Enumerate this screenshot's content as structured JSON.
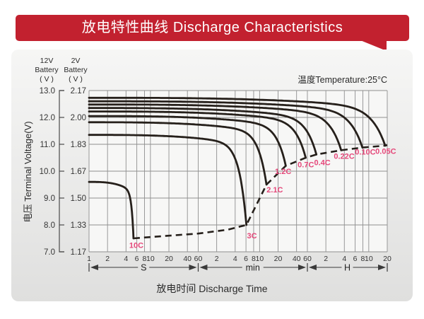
{
  "header": {
    "title": "放电特性曲线 Discharge Characteristics"
  },
  "colors": {
    "banner_red": "#c2212f",
    "curve": "#26201b",
    "grid": "#8f8f8f",
    "curve_label": "#e5487a",
    "axis_text": "#333333",
    "marker": "#3a3a3a"
  },
  "chart_data": {
    "type": "line",
    "title": "放电特性曲线 Discharge Characteristics",
    "temperature_label": "温度Temperature:25°C",
    "temperature_c": 25,
    "xlabel": "放电时间 Discharge Time",
    "ylabel": "电压 Terminal Voltage(V)",
    "x_scale": "log",
    "grid": true,
    "y_axis": {
      "header_12v": "12V\nBattery\n( V )",
      "header_2v": "2V\nBattery\n( V )",
      "range_12v": [
        7.0,
        13.0
      ],
      "range_2v": [
        1.17,
        2.17
      ],
      "ticks": [
        {
          "v12": "13.0",
          "v2": "2.17",
          "value": 13.0
        },
        {
          "v12": "12.0",
          "v2": "2.00",
          "value": 12.0
        },
        {
          "v12": "11.0",
          "v2": "1.83",
          "value": 11.0
        },
        {
          "v12": "10.0",
          "v2": "1.67",
          "value": 10.0
        },
        {
          "v12": "9.0",
          "v2": "1.50",
          "value": 9.0
        },
        {
          "v12": "8.0",
          "v2": "1.33",
          "value": 8.0
        },
        {
          "v12": "7.0",
          "v2": "1.17",
          "value": 7.0
        }
      ]
    },
    "x_axis": {
      "t_min_s": 1,
      "t_max_s": 72000,
      "sections": [
        {
          "label": "S",
          "unit_s": 1,
          "ticks": [
            1,
            2,
            4,
            6,
            8,
            10,
            20,
            40,
            60
          ]
        },
        {
          "label": "min",
          "unit_s": 60,
          "ticks": [
            2,
            4,
            6,
            8,
            10,
            20,
            40,
            60
          ]
        },
        {
          "label": "H",
          "unit_s": 3600,
          "ticks": [
            2,
            4,
            6,
            8,
            10,
            20
          ]
        }
      ]
    },
    "series": [
      {
        "label": "10C",
        "start_v": 9.6,
        "end_t_s": 5.3,
        "end_v": 7.5,
        "label_t_s": 5.9,
        "label_v": 7.25
      },
      {
        "label": "3C",
        "start_v": 11.35,
        "end_t_s": 366,
        "end_v": 8.0,
        "label_t_s": 450,
        "label_v": 7.6
      },
      {
        "label": "2.1C",
        "start_v": 11.82,
        "end_t_s": 776,
        "end_v": 9.5,
        "label_t_s": 1060,
        "label_v": 9.32
      },
      {
        "label": "1.2C",
        "start_v": 12.05,
        "end_t_s": 1600,
        "end_v": 10.2,
        "label_t_s": 1450,
        "label_v": 10.0
      },
      {
        "label": "0.7C",
        "start_v": 12.22,
        "end_t_s": 3380,
        "end_v": 10.5,
        "label_t_s": 3400,
        "label_v": 10.25
      },
      {
        "label": "0.4C",
        "start_v": 12.35,
        "end_t_s": 5040,
        "end_v": 10.62,
        "label_t_s": 6300,
        "label_v": 10.33
      },
      {
        "label": "0.22C",
        "start_v": 12.48,
        "end_t_s": 12800,
        "end_v": 10.78,
        "label_t_s": 14300,
        "label_v": 10.57
      },
      {
        "label": "0.10C",
        "start_v": 12.6,
        "end_t_s": 28400,
        "end_v": 10.88,
        "label_t_s": 31600,
        "label_v": 10.72
      },
      {
        "label": "0.05C",
        "start_v": 12.73,
        "end_t_s": 66600,
        "end_v": 10.95,
        "label_t_s": 68000,
        "label_v": 10.75
      }
    ],
    "cutoff_line": {
      "style": "dashed",
      "points": [
        [
          5.3,
          7.5
        ],
        [
          15,
          7.58
        ],
        [
          60,
          7.68
        ],
        [
          180,
          7.82
        ],
        [
          366,
          8.0
        ],
        [
          776,
          9.5
        ],
        [
          1600,
          10.2
        ],
        [
          3380,
          10.5
        ],
        [
          5040,
          10.62
        ],
        [
          12800,
          10.78
        ],
        [
          28400,
          10.88
        ],
        [
          66600,
          10.95
        ],
        [
          72000,
          10.97
        ]
      ]
    }
  }
}
